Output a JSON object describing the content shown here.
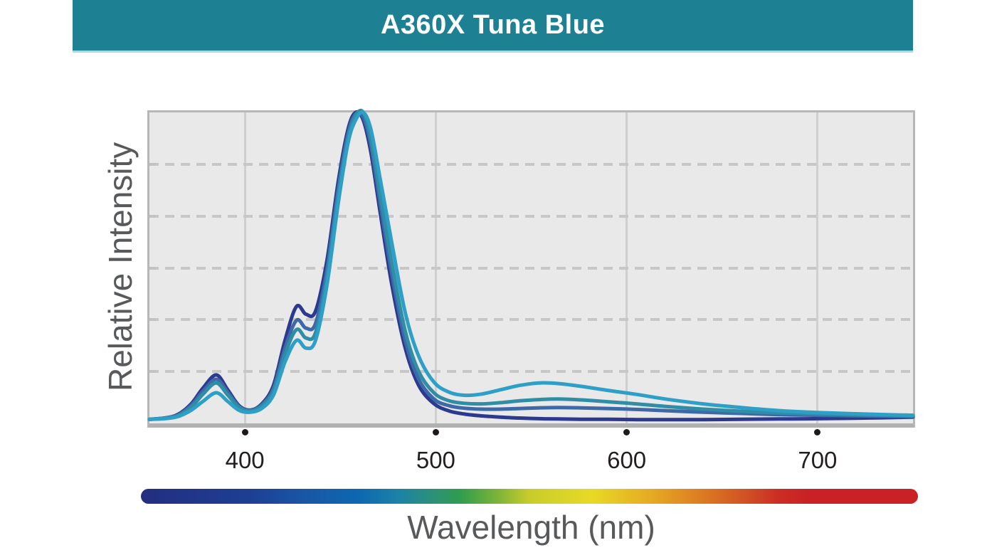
{
  "header": {
    "title": "A360X Tuna Blue"
  },
  "colors": {
    "header_bg": "#1e8193",
    "header_underline": "#aed9e1",
    "plot_bg": "#e9e9e9",
    "plot_border": "#b7b7b7",
    "grid_solid": "#cfcfcf",
    "grid_dashed": "#c7c7c7",
    "tick_dot": "#1f1a17",
    "axis_text": "#231f20",
    "label_text": "#58595b"
  },
  "chart_data": {
    "type": "line",
    "title": "A360X Tuna Blue",
    "xlabel": "Wavelength (nm)",
    "ylabel": "Relative Intensity",
    "xlim": [
      350,
      750
    ],
    "ylim": [
      0,
      1
    ],
    "x_ticks": [
      400,
      500,
      600,
      700
    ],
    "x_tick_labels": [
      "400",
      "500",
      "600",
      "700"
    ],
    "grid": {
      "vertical": "solid",
      "horizontal": "dashed",
      "horizontal_divisions": 6
    },
    "legend_position": "none",
    "x": [
      350,
      358,
      365,
      372,
      378,
      385,
      391,
      397,
      403,
      409,
      415,
      421,
      427,
      432,
      437,
      443,
      449,
      454,
      458,
      462,
      466,
      471,
      477,
      484,
      491,
      499,
      507,
      515,
      524,
      534,
      544,
      554,
      564,
      576,
      590,
      605,
      620,
      640,
      660,
      680,
      700,
      725,
      750
    ],
    "series": [
      {
        "name": "navy",
        "color": "#2b3a8f",
        "values": [
          0.004,
          0.008,
          0.02,
          0.055,
          0.105,
          0.148,
          0.1,
          0.048,
          0.034,
          0.055,
          0.115,
          0.26,
          0.37,
          0.345,
          0.355,
          0.52,
          0.78,
          0.945,
          1.0,
          0.975,
          0.87,
          0.67,
          0.44,
          0.235,
          0.115,
          0.055,
          0.031,
          0.021,
          0.015,
          0.011,
          0.008,
          0.006,
          0.005,
          0.004,
          0.004,
          0.003,
          0.003,
          0.003,
          0.004,
          0.005,
          0.006,
          0.008,
          0.011
        ]
      },
      {
        "name": "steel-blue",
        "color": "#3e69a8",
        "values": [
          0.004,
          0.008,
          0.018,
          0.05,
          0.095,
          0.134,
          0.092,
          0.045,
          0.033,
          0.052,
          0.105,
          0.235,
          0.325,
          0.3,
          0.315,
          0.49,
          0.755,
          0.93,
          0.995,
          0.985,
          0.895,
          0.7,
          0.475,
          0.26,
          0.135,
          0.07,
          0.048,
          0.04,
          0.037,
          0.037,
          0.039,
          0.041,
          0.042,
          0.041,
          0.039,
          0.036,
          0.032,
          0.027,
          0.023,
          0.019,
          0.017,
          0.015,
          0.013
        ]
      },
      {
        "name": "teal",
        "color": "#2f8ea6",
        "values": [
          0.004,
          0.007,
          0.016,
          0.044,
          0.085,
          0.122,
          0.083,
          0.042,
          0.031,
          0.048,
          0.096,
          0.215,
          0.295,
          0.268,
          0.285,
          0.465,
          0.735,
          0.915,
          0.99,
          1.0,
          0.915,
          0.73,
          0.51,
          0.29,
          0.16,
          0.09,
          0.064,
          0.056,
          0.054,
          0.058,
          0.064,
          0.068,
          0.07,
          0.067,
          0.061,
          0.054,
          0.046,
          0.037,
          0.03,
          0.025,
          0.021,
          0.018,
          0.015
        ]
      },
      {
        "name": "light-blue",
        "color": "#2e9fc6",
        "values": [
          0.004,
          0.006,
          0.013,
          0.034,
          0.062,
          0.09,
          0.062,
          0.033,
          0.027,
          0.04,
          0.083,
          0.19,
          0.26,
          0.235,
          0.26,
          0.44,
          0.71,
          0.9,
          0.975,
          1.0,
          0.945,
          0.78,
          0.575,
          0.35,
          0.21,
          0.125,
          0.092,
          0.082,
          0.086,
          0.1,
          0.114,
          0.122,
          0.12,
          0.111,
          0.098,
          0.085,
          0.07,
          0.054,
          0.042,
          0.032,
          0.026,
          0.021,
          0.017
        ]
      }
    ]
  },
  "spectrum_bar": {
    "gradient_stops": [
      "#242e7f 0%",
      "#1d3f93 14%",
      "#1956a6 21%",
      "#0d68b1 28%",
      "#1b82a8 33%",
      "#2e9273 38%",
      "#2f9c4e 41%",
      "#7eb437 46%",
      "#c8cc2b 50%",
      "#e8d926 58%",
      "#e5a823 66%",
      "#dd7c22 72%",
      "#d05024 78%",
      "#cc2d25 82%",
      "#c92125 86%",
      "#c92125 100%"
    ]
  }
}
